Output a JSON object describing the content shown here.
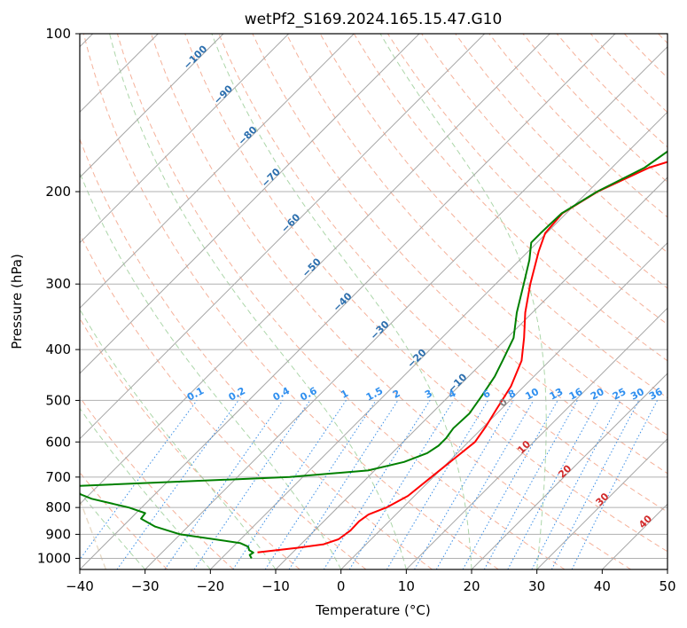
{
  "chart_data": {
    "type": "line",
    "title": "wetPf2_S169.2024.165.15.47.G10",
    "xlabel": "Temperature (°C)",
    "ylabel": "Pressure (hPa)",
    "xlim": [
      -40,
      50
    ],
    "ylim": [
      1050,
      100
    ],
    "y_scale": "log",
    "grid": true,
    "x_ticks": [
      -40,
      -30,
      -20,
      -10,
      0,
      10,
      20,
      30,
      40,
      50
    ],
    "y_ticks": [
      100,
      200,
      300,
      400,
      500,
      600,
      700,
      800,
      900,
      1000
    ],
    "x_tick_labels": [
      "−40",
      "−30",
      "−20",
      "−10",
      "0",
      "10",
      "20",
      "30",
      "40",
      "50"
    ],
    "y_tick_labels": [
      "100",
      "200",
      "300",
      "400",
      "500",
      "600",
      "700",
      "800",
      "900",
      "1000"
    ],
    "series": [
      {
        "color": "#ff0000",
        "points": [
          [
            -15.4,
            974
          ],
          [
            -10.0,
            955
          ],
          [
            -6.5,
            940
          ],
          [
            -5.0,
            920
          ],
          [
            -4.5,
            885
          ],
          [
            -4.6,
            850
          ],
          [
            -4.2,
            825
          ],
          [
            -2.5,
            800
          ],
          [
            -1.0,
            760
          ],
          [
            -0.3,
            700
          ],
          [
            1.0,
            600
          ],
          [
            0.3,
            560
          ],
          [
            -0.7,
            520
          ],
          [
            -2.0,
            470
          ],
          [
            -4.3,
            420
          ],
          [
            -7.4,
            380
          ],
          [
            -11.1,
            340
          ],
          [
            -14.7,
            300
          ],
          [
            -18.4,
            260
          ],
          [
            -20.2,
            240
          ],
          [
            -20.6,
            220
          ],
          [
            -18.5,
            200
          ],
          [
            -14.3,
            180
          ],
          [
            -7.5,
            165
          ],
          [
            1.5,
            155
          ],
          [
            6.0,
            145
          ],
          [
            8.3,
            135
          ],
          [
            10.3,
            125
          ],
          [
            12.3,
            115
          ],
          [
            14.0,
            100
          ]
        ]
      },
      {
        "color": "#008000",
        "points": [
          [
            -15.4,
            1000
          ],
          [
            -16.2,
            985
          ],
          [
            -16.0,
            975
          ],
          [
            -17.0,
            965
          ],
          [
            -17.7,
            950
          ],
          [
            -19.5,
            935
          ],
          [
            -30.0,
            900
          ],
          [
            -35.0,
            870
          ],
          [
            -38.4,
            840
          ],
          [
            -38.6,
            820
          ],
          [
            -42.0,
            800
          ],
          [
            -49.0,
            770
          ],
          [
            -53.0,
            745
          ],
          [
            -55.5,
            730
          ],
          [
            -22.0,
            700
          ],
          [
            -11.0,
            680
          ],
          [
            -6.8,
            655
          ],
          [
            -4.6,
            630
          ],
          [
            -4.0,
            610
          ],
          [
            -4.0,
            590
          ],
          [
            -4.4,
            565
          ],
          [
            -4.2,
            530
          ],
          [
            -5.0,
            490
          ],
          [
            -6.0,
            450
          ],
          [
            -7.2,
            420
          ],
          [
            -9.0,
            380
          ],
          [
            -12.4,
            340
          ],
          [
            -15.7,
            300
          ],
          [
            -18.5,
            270
          ],
          [
            -20.9,
            250
          ],
          [
            -20.9,
            240
          ],
          [
            -20.7,
            220
          ],
          [
            -18.6,
            200
          ],
          [
            -15.0,
            180
          ],
          [
            -13.3,
            160
          ],
          [
            -14.3,
            150
          ],
          [
            -13.0,
            140
          ],
          [
            -10.0,
            130
          ],
          [
            -7.7,
            120
          ],
          [
            -6.0,
            110
          ],
          [
            -4.0,
            100
          ]
        ]
      }
    ],
    "isotherm_labels": [
      "−100",
      "−90",
      "−80",
      "−70",
      "−60",
      "−50",
      "−40",
      "−30",
      "−20",
      "−10",
      "0",
      "10",
      "20",
      "30",
      "40"
    ],
    "mixing_ratio_labels": [
      "0.1",
      "0.2",
      "0.4",
      "0.6",
      "1",
      "1.5",
      "2",
      "3",
      "4",
      "6",
      "8",
      "10",
      "13",
      "16",
      "20",
      "25",
      "30",
      "36"
    ]
  }
}
